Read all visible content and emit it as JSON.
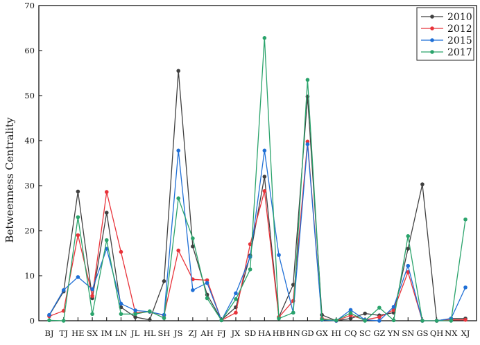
{
  "chart_data": {
    "type": "line",
    "title": "",
    "xlabel": "",
    "ylabel": "Betweenness Centrality",
    "ylim": [
      0,
      70
    ],
    "yticks": [
      0,
      10,
      20,
      30,
      40,
      50,
      60,
      70
    ],
    "grid": false,
    "legend_position": "top-right",
    "categories": [
      "BJ",
      "TJ",
      "HE",
      "SX",
      "IM",
      "LN",
      "JL",
      "HL",
      "SH",
      "JS",
      "ZJ",
      "AH",
      "FJ",
      "JX",
      "SD",
      "HA",
      "HB",
      "HN",
      "GD",
      "GX",
      "HI",
      "CQ",
      "SC",
      "GZ",
      "YN",
      "SN",
      "GS",
      "QH",
      "NX",
      "XJ"
    ],
    "series": [
      {
        "name": "2010",
        "color": "#404040",
        "values": [
          1.2,
          6.5,
          28.7,
          5.0,
          24.0,
          3.0,
          0.8,
          0.2,
          8.8,
          55.5,
          16.5,
          5.8,
          0.2,
          3.0,
          14.5,
          32.0,
          0.8,
          8.0,
          49.8,
          1.3,
          0.0,
          0.5,
          1.6,
          1.2,
          1.8,
          16.0,
          30.3,
          0.0,
          0.5,
          0.5
        ]
      },
      {
        "name": "2012",
        "color": "#e8333a",
        "values": [
          1.0,
          2.2,
          19.0,
          5.5,
          28.6,
          15.3,
          1.8,
          2.0,
          1.2,
          15.6,
          9.2,
          9.0,
          0.1,
          1.8,
          17.0,
          28.8,
          0.8,
          4.4,
          39.8,
          0.5,
          0.0,
          1.2,
          0.2,
          0.8,
          2.4,
          10.8,
          0.0,
          0.0,
          0.2,
          0.2
        ]
      },
      {
        "name": "2015",
        "color": "#1f6fd6",
        "values": [
          1.3,
          6.8,
          9.7,
          7.0,
          16.0,
          3.8,
          2.3,
          2.0,
          1.3,
          37.8,
          6.8,
          8.4,
          0.1,
          6.1,
          14.2,
          37.8,
          14.6,
          1.8,
          39.2,
          0.2,
          0.0,
          2.4,
          0.2,
          0.0,
          3.1,
          12.2,
          0.0,
          0.0,
          0.5,
          7.4
        ]
      },
      {
        "name": "2017",
        "color": "#2aa36b",
        "values": [
          0.1,
          0.0,
          23.0,
          1.5,
          17.9,
          1.5,
          1.5,
          2.1,
          0.6,
          27.2,
          18.3,
          5.0,
          0.1,
          4.8,
          11.4,
          62.8,
          0.5,
          1.8,
          53.5,
          0.3,
          0.1,
          1.7,
          0.0,
          2.9,
          0.1,
          18.8,
          0.0,
          0.0,
          0.0,
          22.5
        ]
      }
    ]
  }
}
